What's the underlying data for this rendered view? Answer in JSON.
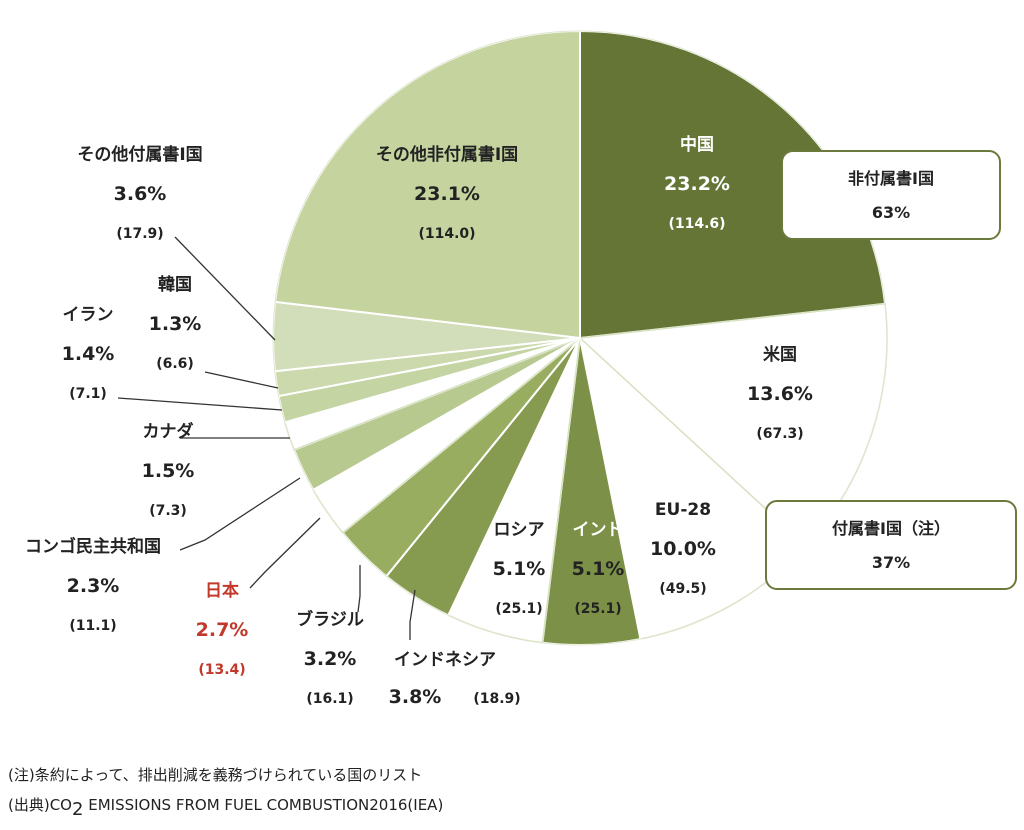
{
  "chart_data": {
    "type": "pie",
    "slices": [
      {
        "name": "中国",
        "pct": "23.2%",
        "value": "(114.6)",
        "percent": 23.2,
        "color": "#647536"
      },
      {
        "name": "米国",
        "pct": "13.6%",
        "value": "(67.3)",
        "percent": 13.6,
        "color": "#ffffff"
      },
      {
        "name": "EU-28",
        "pct": "10.0%",
        "value": "(49.5)",
        "percent": 10.0,
        "color": "#ffffff"
      },
      {
        "name": "インド",
        "pct": "5.1%",
        "value": "(25.1)",
        "percent": 5.1,
        "color": "#7c9147"
      },
      {
        "name": "ロシア",
        "pct": "5.1%",
        "value": "(25.1)",
        "percent": 5.1,
        "color": "#ffffff"
      },
      {
        "name": "インドネシア",
        "pct": "3.8%",
        "value": "(18.9)",
        "percent": 3.8,
        "color": "#869a50"
      },
      {
        "name": "ブラジル",
        "pct": "3.2%",
        "value": "(16.1)",
        "percent": 3.2,
        "color": "#98ad60"
      },
      {
        "name": "日本",
        "pct": "2.7%",
        "value": "(13.4)",
        "percent": 2.7,
        "color": "#ffffff",
        "highlight": "#c0392b"
      },
      {
        "name": "コンゴ民主共和国",
        "pct": "2.3%",
        "value": "(11.1)",
        "percent": 2.3,
        "color": "#b7c98f"
      },
      {
        "name": "カナダ",
        "pct": "1.5%",
        "value": "(7.3)",
        "percent": 1.5,
        "color": "#ffffff"
      },
      {
        "name": "イラン",
        "pct": "1.4%",
        "value": "(7.1)",
        "percent": 1.4,
        "color": "#c4d4a3"
      },
      {
        "name": "韓国",
        "pct": "1.3%",
        "value": "(6.6)",
        "percent": 1.3,
        "color": "#cbd9ad"
      },
      {
        "name": "その他付属書I国",
        "pct": "3.6%",
        "value": "(17.9)",
        "percent": 3.6,
        "color": "#d2deb9"
      },
      {
        "name": "その他非付属書I国",
        "pct": "23.1%",
        "value": "(114.0)",
        "percent": 23.1,
        "color": "#c5d49f"
      }
    ],
    "groups": [
      {
        "name": "非付属書I国",
        "pct": "63%"
      },
      {
        "name": "付属書I国（注）",
        "pct": "37%"
      }
    ],
    "grid": false,
    "legend": "none"
  },
  "notes": {
    "note": "(注)条約によって、排出削減を義務づけられている国のリスト",
    "source_prefix": "(出典)CO",
    "source_sub": "2",
    "source_suffix": " EMISSIONS FROM FUEL COMBUSTION2016(IEA)"
  }
}
